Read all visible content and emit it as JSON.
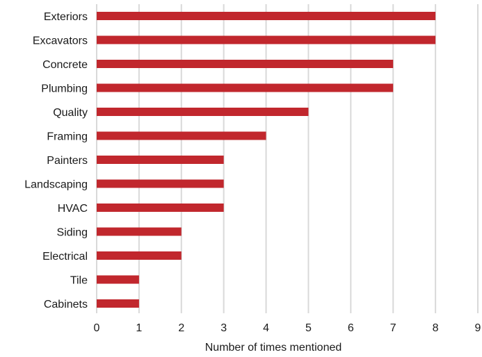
{
  "chart_data": {
    "type": "bar",
    "orientation": "horizontal",
    "categories": [
      "Exteriors",
      "Excavators",
      "Concrete",
      "Plumbing",
      "Quality",
      "Framing",
      "Painters",
      "Landscaping",
      "HVAC",
      "Siding",
      "Electrical",
      "Tile",
      "Cabinets"
    ],
    "values": [
      8,
      8,
      7,
      7,
      5,
      4,
      3,
      3,
      3,
      2,
      2,
      1,
      1
    ],
    "xlabel": "Number of times mentioned",
    "ylabel": "",
    "xlim": [
      0,
      9
    ],
    "xticks": [
      "0",
      "1",
      "2",
      "3",
      "4",
      "5",
      "6",
      "7",
      "8",
      "9"
    ],
    "grid": "vertical",
    "legend": "none",
    "bar_color": "#c1272d"
  }
}
